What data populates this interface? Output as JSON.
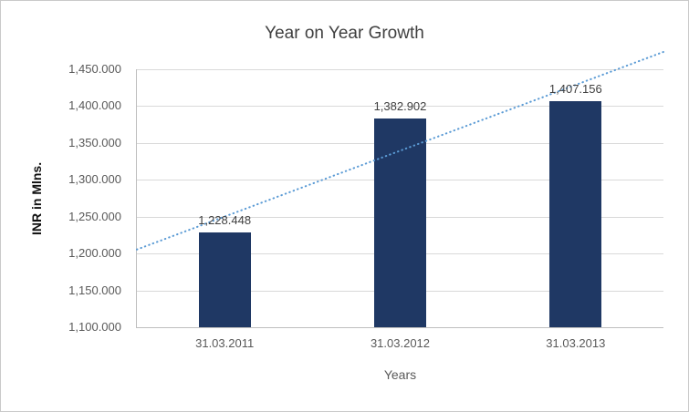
{
  "chart_data": {
    "type": "bar",
    "title": "Year on Year Growth",
    "categories": [
      "31.03.2011",
      "31.03.2012",
      "31.03.2013"
    ],
    "values": [
      1228.448,
      1382.902,
      1407.156
    ],
    "value_labels": [
      "1,228.448",
      "1,382.902",
      "1,407.156"
    ],
    "xlabel": "Years",
    "ylabel": "INR in Mlns.",
    "ylim": [
      1100,
      1450
    ],
    "ytick_step": 50,
    "ytick_labels": [
      "1,100.000",
      "1,150.000",
      "1,200.000",
      "1,250.000",
      "1,300.000",
      "1,350.000",
      "1,400.000",
      "1,450.000"
    ],
    "grid": true,
    "legend_position": "none",
    "trendline": {
      "type": "linear",
      "style": "dotted"
    },
    "colors": {
      "bar": "#1F3864",
      "trendline": "#5B9BD5",
      "title_text": "#404040",
      "tick_text": "#595959",
      "gridline": "#D9D9D9",
      "axis_line": "#BFBFBF",
      "background": "#FFFFFF",
      "border": "#C9C9C9"
    }
  }
}
